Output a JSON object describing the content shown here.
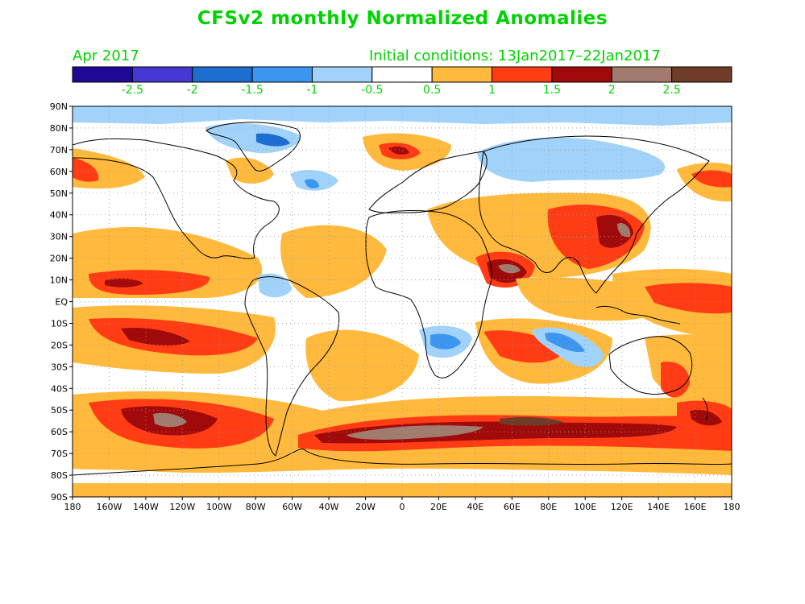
{
  "title": "CFSv2 monthly Normalized Anomalies",
  "subtitle_left": "Apr 2017",
  "subtitle_right": "Initial conditions: 13Jan2017–22Jan2017",
  "colorbar": {
    "colors": [
      "#1e0a96",
      "#4638d2",
      "#1e6ed2",
      "#3c96f0",
      "#a0d2fa",
      "#ffffff",
      "#ffb93c",
      "#ff3c14",
      "#a00a0a",
      "#a07b6e",
      "#6e3c28"
    ],
    "labels": [
      "-2.5",
      "-2",
      "-1.5",
      "-1",
      "-0.5",
      "0.5",
      "1",
      "1.5",
      "2",
      "2.5"
    ]
  },
  "map": {
    "lat_labels": [
      "90N",
      "80N",
      "70N",
      "60N",
      "50N",
      "40N",
      "30N",
      "20N",
      "10N",
      "EQ",
      "10S",
      "20S",
      "30S",
      "40S",
      "50S",
      "60S",
      "70S",
      "80S",
      "90S"
    ],
    "lon_labels": [
      "180",
      "160W",
      "140W",
      "120W",
      "100W",
      "80W",
      "60W",
      "40W",
      "20W",
      "0",
      "20E",
      "40E",
      "60E",
      "80E",
      "100E",
      "120E",
      "140E",
      "160E",
      "180"
    ]
  },
  "colors": {
    "title": "#00d200",
    "axis_text": "#000000"
  }
}
